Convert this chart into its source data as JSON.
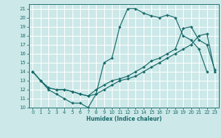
{
  "xlabel": "Humidex (Indice chaleur)",
  "bg_color": "#cce8e8",
  "line_color": "#1a6b6b",
  "grid_color": "#ffffff",
  "xlim": [
    -0.5,
    23.5
  ],
  "ylim": [
    10,
    21.5
  ],
  "xticks": [
    0,
    1,
    2,
    3,
    4,
    5,
    6,
    7,
    8,
    9,
    10,
    11,
    12,
    13,
    14,
    15,
    16,
    17,
    18,
    19,
    20,
    21,
    22,
    23
  ],
  "yticks": [
    10,
    11,
    12,
    13,
    14,
    15,
    16,
    17,
    18,
    19,
    20,
    21
  ],
  "line1_x": [
    0,
    1,
    2,
    3,
    4,
    5,
    6,
    7,
    8,
    9,
    10,
    11,
    12,
    13,
    14,
    15,
    16,
    17,
    18,
    19,
    20,
    21,
    22
  ],
  "line1_y": [
    14,
    13,
    12,
    11.5,
    11,
    10.5,
    10.5,
    10,
    11.5,
    15,
    15.5,
    19,
    21,
    21,
    20.5,
    20.2,
    20,
    20.3,
    20,
    18,
    17.5,
    16.5,
    14
  ],
  "line2_x": [
    0,
    1,
    2,
    3,
    4,
    5,
    6,
    7,
    8,
    9,
    10,
    11,
    12,
    13,
    14,
    15,
    16,
    17,
    18,
    19,
    20,
    21,
    22,
    23
  ],
  "line2_y": [
    14,
    13,
    12.2,
    12,
    12,
    11.8,
    11.5,
    11.3,
    11.5,
    12,
    12.5,
    13,
    13.2,
    13.5,
    14,
    14.5,
    15,
    15.5,
    16,
    16.5,
    17,
    18,
    18.2,
    14
  ],
  "line3_x": [
    0,
    1,
    2,
    3,
    4,
    5,
    6,
    7,
    8,
    9,
    10,
    11,
    12,
    13,
    14,
    15,
    16,
    17,
    18,
    19,
    20,
    21,
    22,
    23
  ],
  "line3_y": [
    14,
    13,
    12.2,
    12,
    12,
    11.8,
    11.5,
    11.3,
    12,
    12.5,
    13,
    13.2,
    13.5,
    14,
    14.5,
    15.2,
    15.5,
    16,
    16.5,
    18.8,
    19,
    17.5,
    17,
    14.2
  ]
}
